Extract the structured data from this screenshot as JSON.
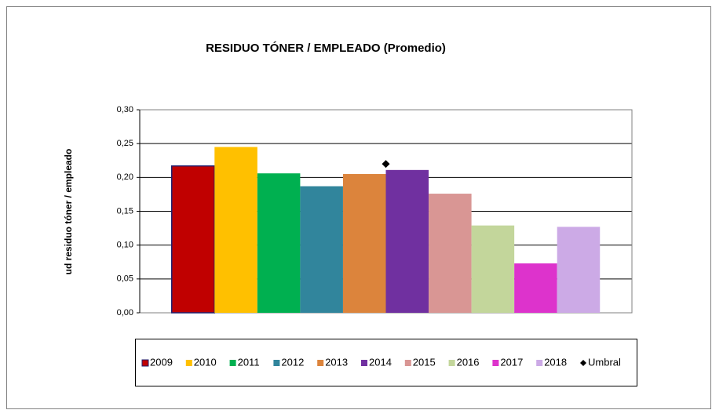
{
  "chart_data": {
    "type": "bar",
    "title": "RESIDUO TÓNER / EMPLEADO (Promedio)",
    "y_label": "ud residuo tóner / empleado",
    "categories": [
      null
    ],
    "series": [
      {
        "name": "2009",
        "color": "#c00000",
        "values": [
          0.217
        ]
      },
      {
        "name": "2010",
        "color": "#ffc000",
        "values": [
          0.245
        ]
      },
      {
        "name": "2011",
        "color": "#00b050",
        "values": [
          0.206
        ]
      },
      {
        "name": "2012",
        "color": "#31859c",
        "values": [
          0.187
        ]
      },
      {
        "name": "2013",
        "color": "#dc843c",
        "values": [
          0.205
        ]
      },
      {
        "name": "2014",
        "color": "#7030a0",
        "values": [
          0.211
        ]
      },
      {
        "name": "2015",
        "color": "#d99694",
        "values": [
          0.176
        ]
      },
      {
        "name": "2016",
        "color": "#c3d69b",
        "values": [
          0.129
        ]
      },
      {
        "name": "2017",
        "color": "#dd33cc",
        "values": [
          0.073
        ]
      },
      {
        "name": "2018",
        "color": "#ccaae6",
        "values": [
          0.127
        ]
      },
      {
        "name": "Umbral",
        "color": "#000000",
        "marker": "diamond",
        "values": [
          0.22
        ]
      }
    ],
    "ylim": [
      0,
      0.3
    ],
    "yticks": [
      {
        "value": 0,
        "label": "0,00"
      },
      {
        "value": 0.05,
        "label": "0,05"
      },
      {
        "value": 0.1,
        "label": "0,10"
      },
      {
        "value": 0.15,
        "label": "0,15"
      },
      {
        "value": 0.2,
        "label": "0,20"
      },
      {
        "value": 0.25,
        "label": "0,25"
      },
      {
        "value": 0.3,
        "label": "0,30"
      }
    ],
    "grid": true,
    "legend": "bottom"
  }
}
